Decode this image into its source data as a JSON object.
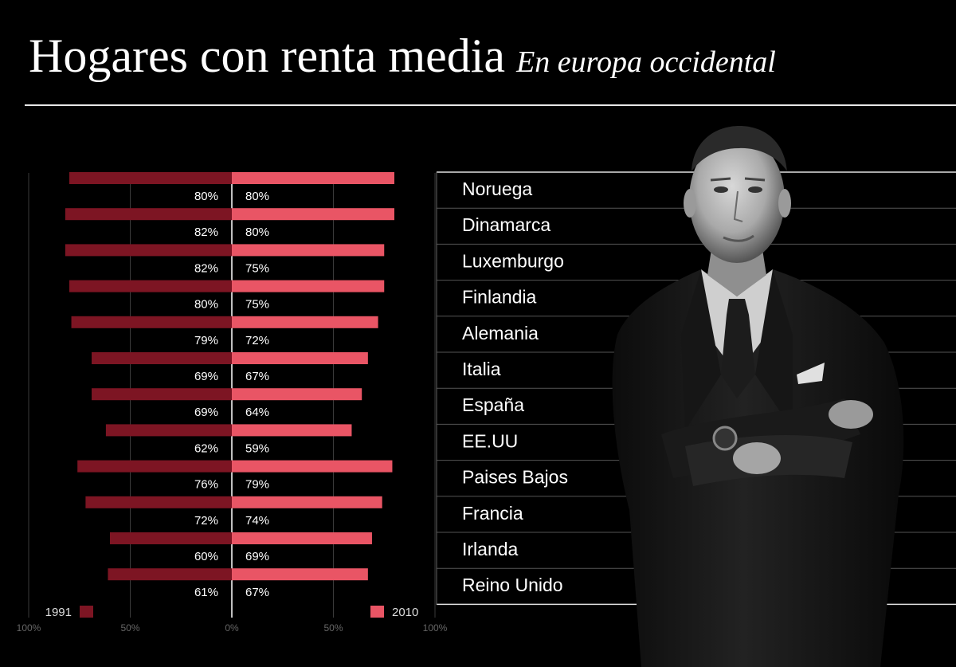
{
  "header": {
    "title": "Hogares con renta media",
    "subtitle": "En europa occidental"
  },
  "chart_data": {
    "type": "bar",
    "title": "Hogares con renta media",
    "subtitle": "En europa occidental",
    "categories": [
      "Noruega",
      "Dinamarca",
      "Luxemburgo",
      "Finlandia",
      "Alemania",
      "Italia",
      "España",
      "EE.UU",
      "Paises Bajos",
      "Francia",
      "Irlanda",
      "Reino Unido"
    ],
    "series": [
      {
        "name": "1991",
        "color": "#7d1523",
        "direction": "left",
        "values": [
          80,
          82,
          82,
          80,
          79,
          69,
          69,
          62,
          76,
          72,
          60,
          61
        ],
        "labels": [
          "80%",
          "82%",
          "82%",
          "80%",
          "79%",
          "69%",
          "69%",
          "62%",
          "76%",
          "72%",
          "60%",
          "61%"
        ]
      },
      {
        "name": "2010",
        "color": "#e95565",
        "direction": "right",
        "values": [
          80,
          80,
          75,
          75,
          72,
          67,
          64,
          59,
          79,
          74,
          69,
          67
        ],
        "labels": [
          "80%",
          "80%",
          "75%",
          "75%",
          "72%",
          "67%",
          "64%",
          "59%",
          "79%",
          "74%",
          "69%",
          "67%"
        ]
      }
    ],
    "xlim": [
      -100,
      100
    ],
    "tick_labels": [
      "100%",
      "50%",
      "0%",
      "50%",
      "100%"
    ],
    "legend_placement": "bottom",
    "grid": true
  },
  "photo": {
    "subject": "man in dark suit with arms crossed"
  }
}
